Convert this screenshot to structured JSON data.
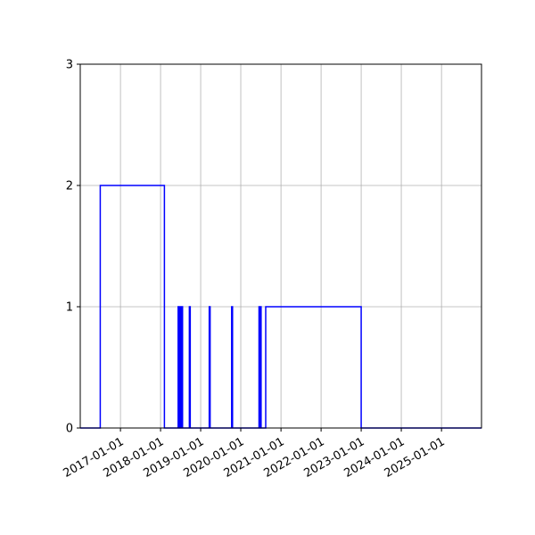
{
  "chart_data": {
    "type": "line",
    "title": "",
    "xlabel": "",
    "ylabel": "",
    "x_ticks": [
      "2017-01-01",
      "2018-01-01",
      "2019-01-01",
      "2020-01-01",
      "2021-01-01",
      "2022-01-01",
      "2023-01-01",
      "2024-01-01",
      "2025-01-01"
    ],
    "y_ticks": [
      0,
      1,
      2,
      3
    ],
    "xlim": [
      "2016-01-01",
      "2025-12-31"
    ],
    "ylim": [
      0,
      3
    ],
    "grid": true,
    "line_color": "#0000ff",
    "series": [
      {
        "step": "post",
        "points": [
          [
            "2016-01-01",
            0
          ],
          [
            "2016-07-01",
            2
          ],
          [
            "2018-02-05",
            0
          ],
          [
            "2018-06-10",
            1
          ],
          [
            "2018-06-20",
            0
          ],
          [
            "2018-06-25",
            1
          ],
          [
            "2018-07-05",
            0
          ],
          [
            "2018-07-10",
            1
          ],
          [
            "2018-07-20",
            0
          ],
          [
            "2018-09-20",
            1
          ],
          [
            "2018-09-28",
            0
          ],
          [
            "2019-03-20",
            1
          ],
          [
            "2019-03-28",
            0
          ],
          [
            "2019-10-10",
            1
          ],
          [
            "2019-10-18",
            0
          ],
          [
            "2020-06-15",
            1
          ],
          [
            "2020-06-22",
            0
          ],
          [
            "2020-06-27",
            1
          ],
          [
            "2020-07-04",
            0
          ],
          [
            "2020-08-15",
            1
          ],
          [
            "2023-01-01",
            0
          ],
          [
            "2025-12-31",
            0
          ]
        ]
      }
    ]
  }
}
